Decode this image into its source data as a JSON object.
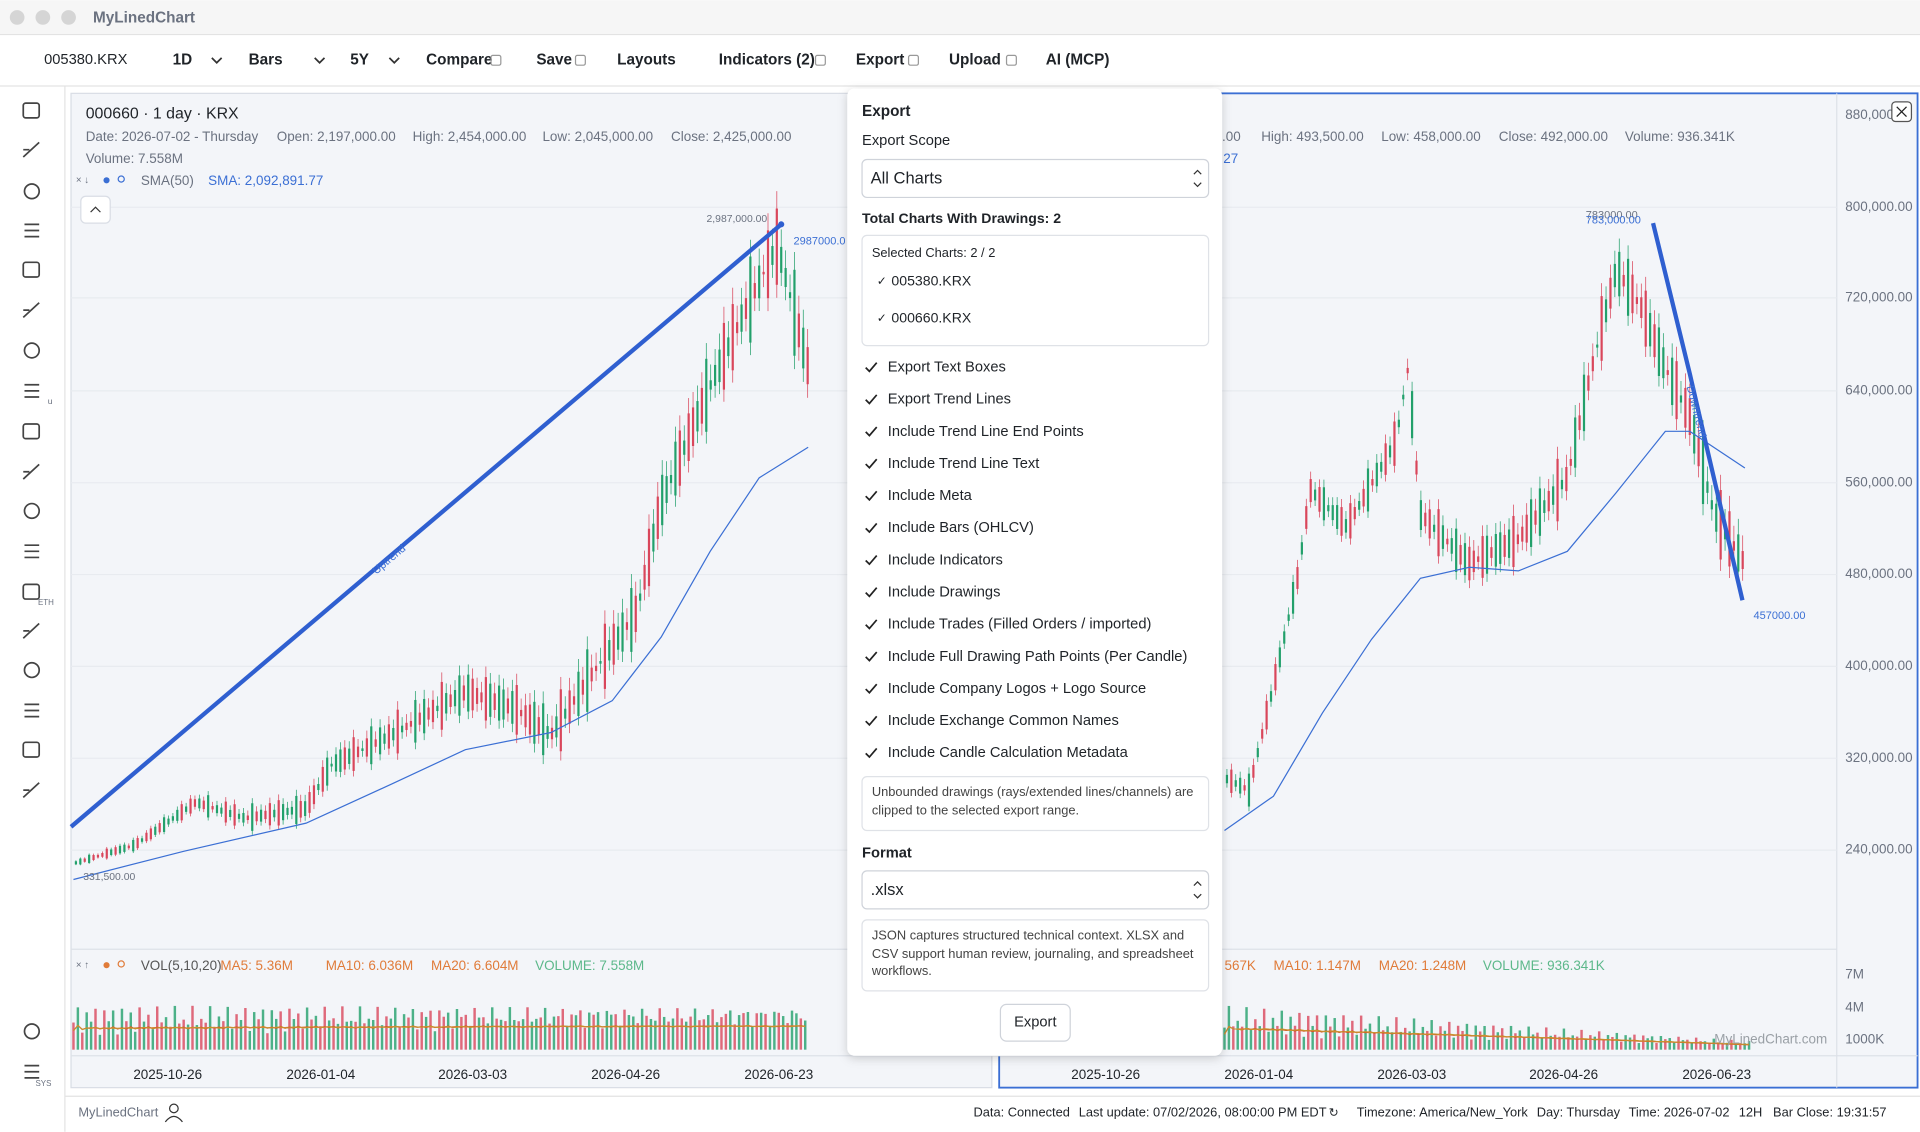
{
  "window": {
    "title": "MyLinedChart"
  },
  "toolbar": {
    "symbol": "005380.KRX",
    "interval": "1D",
    "chart_type": "Bars",
    "range": "5Y",
    "items": [
      "Compare",
      "Save",
      "Layouts",
      "Indicators (2)",
      "Export",
      "Upload",
      "AI (MCP)"
    ]
  },
  "sidebar": {
    "badges": [
      "u",
      "ETH",
      "SYS"
    ]
  },
  "left_chart": {
    "header": "000660 · 1 day · KRX",
    "ohlc": [
      "Date: 2026-07-02 - Thursday",
      "Open: 2,197,000.00",
      "High: 2,454,000.00",
      "Low: 2,045,000.00",
      "Close: 2,425,000.00"
    ],
    "volume": "Volume: 7.558M",
    "sma_label": "SMA(50)",
    "sma_value": "SMA: 2,092,891.77",
    "annotations": {
      "high": "2,987,000.00",
      "line_end": "2987000.0",
      "low": "331,500.00",
      "trend": "Uptrend"
    },
    "vol_legend": [
      "VOL(5,10,20)",
      "MA5: 5.36M",
      "MA10: 6.036M",
      "MA20: 6.604M",
      "VOLUME: 7.558M"
    ],
    "dates": [
      "2025-10-26",
      "2026-01-04",
      "2026-03-03",
      "2026-04-26",
      "2026-06-23"
    ]
  },
  "right_chart": {
    "ohlc": [
      ".00",
      "High: 493,500.00",
      "Low: 458,000.00",
      "Close: 492,000.00",
      "Volume: 936.341K"
    ],
    "sma_value": "27",
    "annotations": {
      "high": "783000.00",
      "high_alt": "783,000.00",
      "low": "457000.00",
      "trend": "Downtrend"
    },
    "price_axis": [
      "880,000.00",
      "800,000.00",
      "720,000.00",
      "640,000.00",
      "560,000.00",
      "480,000.00",
      "400,000.00",
      "320,000.00",
      "240,000.00"
    ],
    "vol_axis": [
      "7M",
      "4M",
      "1000K"
    ],
    "vol_legend": [
      "567K",
      "MA10: 1.147M",
      "MA20: 1.248M",
      "VOLUME: 936.341K"
    ],
    "dates": [
      "2025-10-26",
      "2026-01-04",
      "2026-03-03",
      "2026-04-26",
      "2026-06-23"
    ],
    "watermark": "MyLinedChart.com"
  },
  "export_panel": {
    "title": "Export",
    "scope_label": "Export Scope",
    "scope_value": "All Charts",
    "total": "Total Charts With Drawings: 2",
    "selected": "Selected Charts: 2 / 2",
    "charts": [
      "005380.KRX",
      "000660.KRX"
    ],
    "options": [
      "Export Text Boxes",
      "Export Trend Lines",
      "Include Trend Line End Points",
      "Include Trend Line Text",
      "Include Meta",
      "Include Bars (OHLCV)",
      "Include Indicators",
      "Include Drawings",
      "Include Trades (Filled Orders / imported)",
      "Include Full Drawing Path Points (Per Candle)",
      "Include Company Logos + Logo Source",
      "Include Exchange Common Names",
      "Include Candle Calculation Metadata"
    ],
    "note": "Unbounded drawings (rays/extended lines/channels) are clipped to the selected export range.",
    "format_label": "Format",
    "format_value": ".xlsx",
    "format_note": "JSON captures structured technical context. XLSX and CSV support human review, journaling, and spreadsheet workflows.",
    "button": "Export"
  },
  "status": {
    "brand": "MyLinedChart",
    "items": [
      "Data: Connected",
      "Last update: 07/02/2026, 08:00:00 PM EDT",
      "Timezone: America/New_York",
      "Day: Thursday",
      "Time: 2026-07-02",
      "12H",
      "Bar Close: 19:31:57"
    ]
  }
}
